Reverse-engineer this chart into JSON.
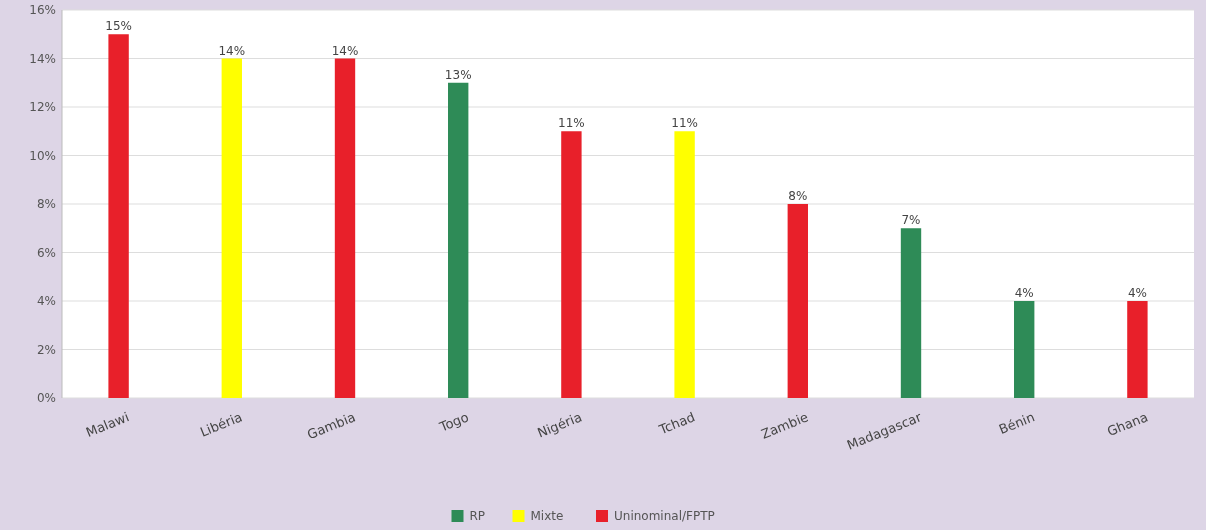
{
  "chart_data": {
    "type": "bar",
    "categories": [
      "Malawi",
      "Libéria",
      "Gambia",
      "Togo",
      "Nigéria",
      "Tchad",
      "Zambie",
      "Madagascar",
      "Bénin",
      "Ghana"
    ],
    "series": [
      {
        "name": "RP",
        "color": "#2e8b57",
        "values": [
          null,
          null,
          null,
          13,
          null,
          null,
          null,
          7,
          4,
          null
        ],
        "value_labels": [
          null,
          null,
          null,
          "13%",
          null,
          null,
          null,
          "7%",
          "4%",
          null
        ]
      },
      {
        "name": "Mixte",
        "color": "#ffff00",
        "values": [
          null,
          14,
          null,
          null,
          null,
          11,
          null,
          null,
          null,
          null
        ],
        "value_labels": [
          null,
          "14%",
          null,
          null,
          null,
          "11%",
          null,
          null,
          null,
          null
        ]
      },
      {
        "name": "Uninominal/FPTP",
        "color": "#e8202a",
        "values": [
          15,
          null,
          14,
          null,
          11,
          null,
          8,
          null,
          null,
          4
        ],
        "value_labels": [
          "15%",
          null,
          "14%",
          null,
          "11%",
          null,
          "8%",
          null,
          null,
          "4%"
        ]
      }
    ],
    "ylim": [
      0,
      16
    ],
    "yticks": [
      {
        "value": 0,
        "label": "0%"
      },
      {
        "value": 2,
        "label": "2%"
      },
      {
        "value": 4,
        "label": "4%"
      },
      {
        "value": 6,
        "label": "6%"
      },
      {
        "value": 8,
        "label": "8%"
      },
      {
        "value": 10,
        "label": "10%"
      },
      {
        "value": 12,
        "label": "12%"
      },
      {
        "value": 14,
        "label": "14%"
      },
      {
        "value": 16,
        "label": "16%"
      }
    ],
    "grid": "y",
    "legend": "bottom"
  }
}
